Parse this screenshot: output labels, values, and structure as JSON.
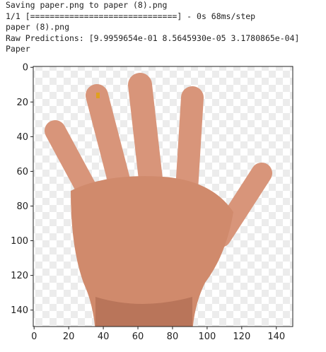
{
  "console": {
    "lines": [
      "Saving paper.png to paper (8).png",
      "1/1 [==============================] - 0s 68ms/step",
      "paper (8).png",
      "Raw Predictions: [9.9959654e-01 8.5645930e-05 3.1780865e-04]",
      "Paper"
    ]
  },
  "plot": {
    "xlim": [
      -0.5,
      149.5
    ],
    "ylim": [
      149.5,
      -0.5
    ],
    "xticks": [
      0,
      20,
      40,
      60,
      80,
      100,
      120,
      140
    ],
    "yticks": [
      0,
      20,
      40,
      60,
      80,
      100,
      120,
      140
    ]
  }
}
